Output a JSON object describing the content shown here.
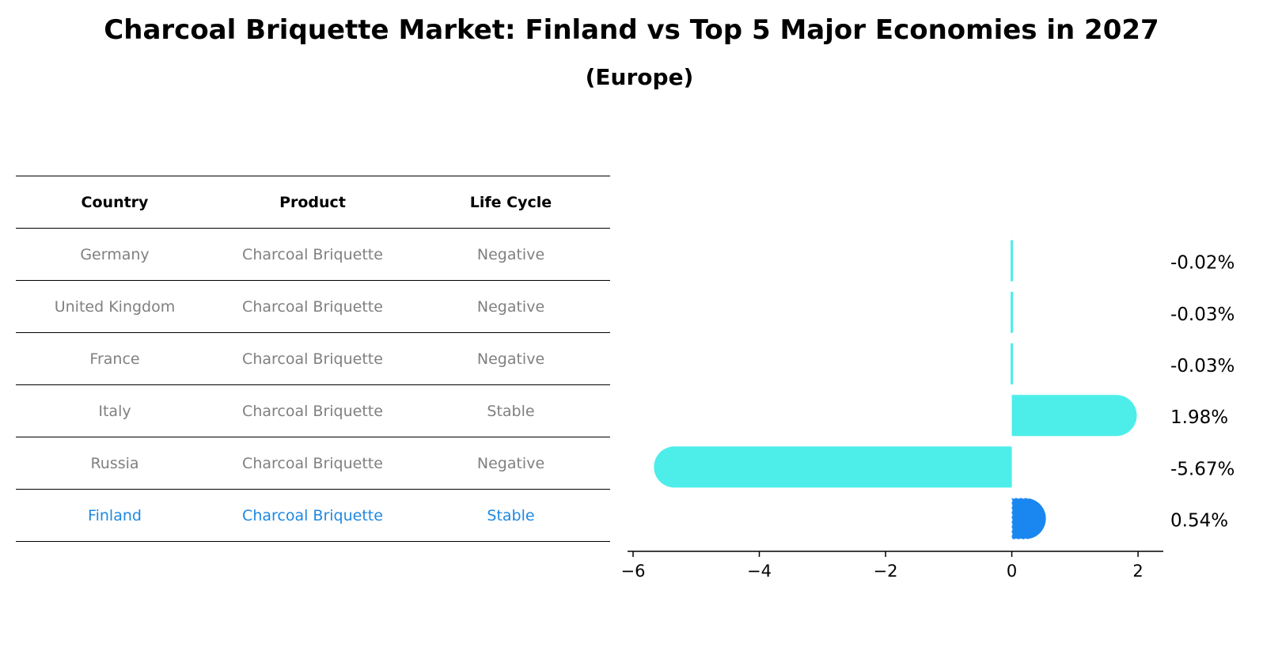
{
  "chart_data": {
    "type": "bar",
    "orientation": "horizontal",
    "title": "Charcoal Briquette Market: Finland vs Top 5 Major Economies in 2027",
    "subtitle": "(Europe)",
    "table": {
      "columns": [
        "Country",
        "Product",
        "Life Cycle"
      ],
      "rows": [
        [
          "Germany",
          "Charcoal Briquette",
          "Negative"
        ],
        [
          "United Kingdom",
          "Charcoal Briquette",
          "Negative"
        ],
        [
          "France",
          "Charcoal Briquette",
          "Negative"
        ],
        [
          "Italy",
          "Charcoal Briquette",
          "Stable"
        ],
        [
          "Russia",
          "Charcoal Briquette",
          "Negative"
        ],
        [
          "Finland",
          "Charcoal Briquette",
          "Stable"
        ]
      ],
      "highlight_row": 5
    },
    "categories": [
      "Germany",
      "United Kingdom",
      "France",
      "Italy",
      "Russia",
      "Finland"
    ],
    "values": [
      -0.02,
      -0.03,
      -0.03,
      1.98,
      -5.67,
      0.54
    ],
    "value_labels": [
      "-0.02%",
      "-0.03%",
      "-0.03%",
      "1.98%",
      "-5.67%",
      "0.54%"
    ],
    "xlim": [
      -6.05,
      2.4
    ],
    "xticks": [
      -6,
      -4,
      -2,
      0,
      2
    ],
    "xtick_labels": [
      "−6",
      "−4",
      "−2",
      "0",
      "2"
    ],
    "grid": false,
    "colors": {
      "bar": "#4deeea",
      "highlight_bar": "#1a87f0",
      "highlight_text": "#1f88e0",
      "table_text": "#808080"
    }
  }
}
